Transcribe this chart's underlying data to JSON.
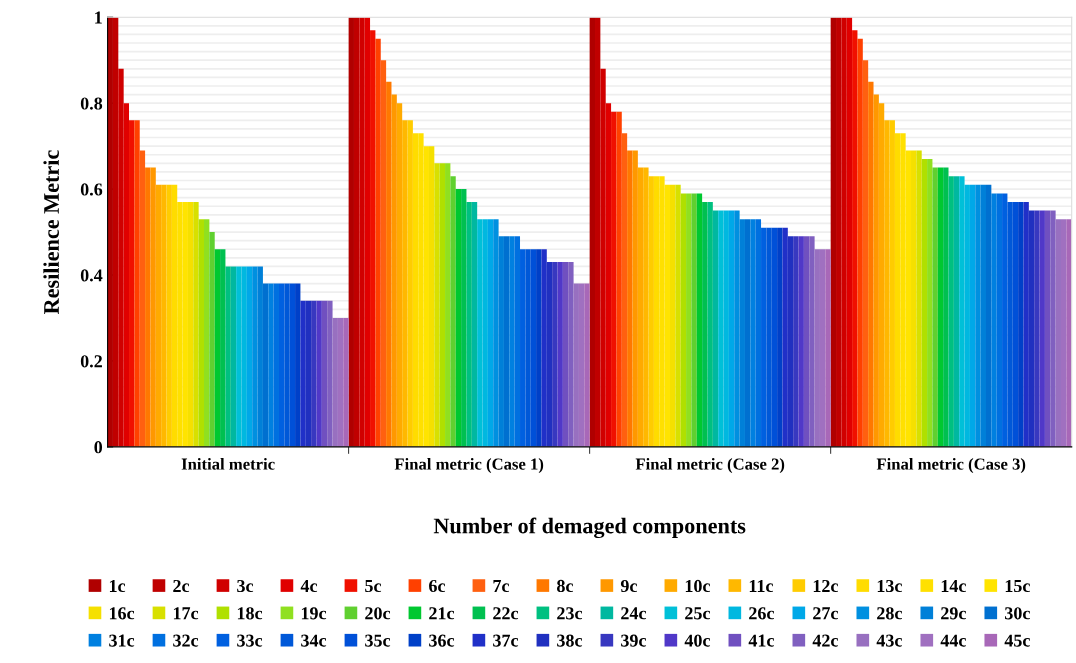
{
  "chart_data": {
    "type": "bar",
    "xlabel": "Number of demaged components",
    "ylabel": "Resilience Metric",
    "categories": [
      "Initial metric",
      "Final metric (Case 1)",
      "Final metric (Case 2)",
      "Final metric (Case 3)"
    ],
    "ylim": [
      0,
      1
    ],
    "yticks": [
      0,
      {
        "value": 0.02,
        "label": null
      },
      {
        "value": 0.04,
        "label": null
      },
      {
        "value": 0.06,
        "label": null
      },
      {
        "value": 0.08,
        "label": null
      },
      {
        "value": 0.1,
        "label": null
      },
      {
        "value": 0.12,
        "label": null
      },
      {
        "value": 0.14,
        "label": null
      },
      {
        "value": 0.16,
        "label": null
      },
      {
        "value": 0.18,
        "label": null
      },
      0.2,
      {
        "value": 0.22,
        "label": null
      },
      {
        "value": 0.24,
        "label": null
      },
      {
        "value": 0.26,
        "label": null
      },
      {
        "value": 0.28,
        "label": null
      },
      {
        "value": 0.3,
        "label": null
      },
      {
        "value": 0.32,
        "label": null
      },
      {
        "value": 0.34,
        "label": null
      },
      {
        "value": 0.36,
        "label": null
      },
      {
        "value": 0.38,
        "label": null
      },
      0.4,
      {
        "value": 0.42,
        "label": null
      },
      {
        "value": 0.44,
        "label": null
      },
      {
        "value": 0.46,
        "label": null
      },
      {
        "value": 0.48,
        "label": null
      },
      {
        "value": 0.5,
        "label": null
      },
      {
        "value": 0.52,
        "label": null
      },
      {
        "value": 0.54,
        "label": null
      },
      {
        "value": 0.56,
        "label": null
      },
      {
        "value": 0.58,
        "label": null
      },
      0.6,
      {
        "value": 0.62,
        "label": null
      },
      {
        "value": 0.64,
        "label": null
      },
      {
        "value": 0.66,
        "label": null
      },
      {
        "value": 0.68,
        "label": null
      },
      {
        "value": 0.7,
        "label": null
      },
      {
        "value": 0.72,
        "label": null
      },
      {
        "value": 0.74,
        "label": null
      },
      {
        "value": 0.76,
        "label": null
      },
      {
        "value": 0.78,
        "label": null
      },
      0.8,
      {
        "value": 0.82,
        "label": null
      },
      {
        "value": 0.84,
        "label": null
      },
      {
        "value": 0.86,
        "label": null
      },
      {
        "value": 0.88,
        "label": null
      },
      {
        "value": 0.9,
        "label": null
      },
      {
        "value": 0.92,
        "label": null
      },
      {
        "value": 0.94,
        "label": null
      },
      {
        "value": 0.96,
        "label": null
      },
      {
        "value": 0.98,
        "label": null
      },
      1
    ],
    "grid": "y",
    "legend": "bottom",
    "series": [
      {
        "name": "1c",
        "color": "#b00000",
        "values": [
          1,
          1,
          1,
          1
        ]
      },
      {
        "name": "2c",
        "color": "#c00000",
        "values": [
          1,
          1,
          1,
          1
        ]
      },
      {
        "name": "3c",
        "color": "#d00000",
        "values": [
          0.88,
          1,
          0.88,
          1
        ]
      },
      {
        "name": "4c",
        "color": "#e00000",
        "values": [
          0.8,
          1,
          0.8,
          1
        ]
      },
      {
        "name": "5c",
        "color": "#f01000",
        "values": [
          0.76,
          0.97,
          0.78,
          0.97
        ]
      },
      {
        "name": "6c",
        "color": "#ff4000",
        "values": [
          0.76,
          0.95,
          0.78,
          0.95
        ]
      },
      {
        "name": "7c",
        "color": "#ff6010",
        "values": [
          0.69,
          0.9,
          0.73,
          0.9
        ]
      },
      {
        "name": "8c",
        "color": "#ff7800",
        "values": [
          0.65,
          0.85,
          0.69,
          0.85
        ]
      },
      {
        "name": "9c",
        "color": "#ff9800",
        "values": [
          0.65,
          0.82,
          0.69,
          0.82
        ]
      },
      {
        "name": "10c",
        "color": "#ffaa00",
        "values": [
          0.61,
          0.8,
          0.65,
          0.8
        ]
      },
      {
        "name": "11c",
        "color": "#ffb800",
        "values": [
          0.61,
          0.76,
          0.65,
          0.76
        ]
      },
      {
        "name": "12c",
        "color": "#ffcc00",
        "values": [
          0.61,
          0.76,
          0.63,
          0.76
        ]
      },
      {
        "name": "13c",
        "color": "#ffdc00",
        "values": [
          0.61,
          0.73,
          0.63,
          0.73
        ]
      },
      {
        "name": "14c",
        "color": "#ffe000",
        "values": [
          0.57,
          0.73,
          0.63,
          0.73
        ]
      },
      {
        "name": "15c",
        "color": "#ffe400",
        "values": [
          0.57,
          0.7,
          0.61,
          0.69
        ]
      },
      {
        "name": "16c",
        "color": "#f5e000",
        "values": [
          0.57,
          0.7,
          0.61,
          0.69
        ]
      },
      {
        "name": "17c",
        "color": "#d8e000",
        "values": [
          0.57,
          0.66,
          0.61,
          0.69
        ]
      },
      {
        "name": "18c",
        "color": "#b0e000",
        "values": [
          0.53,
          0.66,
          0.59,
          0.67
        ]
      },
      {
        "name": "19c",
        "color": "#90e020",
        "values": [
          0.53,
          0.66,
          0.59,
          0.67
        ]
      },
      {
        "name": "20c",
        "color": "#60d030",
        "values": [
          0.5,
          0.63,
          0.59,
          0.65
        ]
      },
      {
        "name": "21c",
        "color": "#00c830",
        "values": [
          0.46,
          0.6,
          0.59,
          0.65
        ]
      },
      {
        "name": "22c",
        "color": "#00c050",
        "values": [
          0.46,
          0.6,
          0.57,
          0.65
        ]
      },
      {
        "name": "23c",
        "color": "#00c080",
        "values": [
          0.42,
          0.57,
          0.57,
          0.63
        ]
      },
      {
        "name": "24c",
        "color": "#00b8a0",
        "values": [
          0.42,
          0.57,
          0.55,
          0.63
        ]
      },
      {
        "name": "25c",
        "color": "#00c0d8",
        "values": [
          0.42,
          0.53,
          0.55,
          0.63
        ]
      },
      {
        "name": "26c",
        "color": "#00b8e0",
        "values": [
          0.42,
          0.53,
          0.55,
          0.61
        ]
      },
      {
        "name": "27c",
        "color": "#00a8e8",
        "values": [
          0.42,
          0.53,
          0.55,
          0.61
        ]
      },
      {
        "name": "28c",
        "color": "#0090e0",
        "values": [
          0.42,
          0.53,
          0.55,
          0.61
        ]
      },
      {
        "name": "29c",
        "color": "#0080d8",
        "values": [
          0.42,
          0.49,
          0.53,
          0.61
        ]
      },
      {
        "name": "30c",
        "color": "#0070d0",
        "values": [
          0.38,
          0.49,
          0.53,
          0.61
        ]
      },
      {
        "name": "31c",
        "color": "#0080e0",
        "values": [
          0.38,
          0.49,
          0.53,
          0.59
        ]
      },
      {
        "name": "32c",
        "color": "#0070e0",
        "values": [
          0.38,
          0.49,
          0.53,
          0.59
        ]
      },
      {
        "name": "33c",
        "color": "#0060e0",
        "values": [
          0.38,
          0.46,
          0.51,
          0.59
        ]
      },
      {
        "name": "34c",
        "color": "#0058d8",
        "values": [
          0.38,
          0.46,
          0.51,
          0.57
        ]
      },
      {
        "name": "35c",
        "color": "#0050d8",
        "values": [
          0.38,
          0.46,
          0.51,
          0.57
        ]
      },
      {
        "name": "36c",
        "color": "#0040c8",
        "values": [
          0.38,
          0.46,
          0.51,
          0.57
        ]
      },
      {
        "name": "37c",
        "color": "#2030c8",
        "values": [
          0.34,
          0.46,
          0.51,
          0.57
        ]
      },
      {
        "name": "38c",
        "color": "#2030c0",
        "values": [
          0.34,
          0.43,
          0.49,
          0.55
        ]
      },
      {
        "name": "39c",
        "color": "#3838c0",
        "values": [
          0.34,
          0.43,
          0.49,
          0.55
        ]
      },
      {
        "name": "40c",
        "color": "#5038c8",
        "values": [
          0.34,
          0.43,
          0.49,
          0.55
        ]
      },
      {
        "name": "41c",
        "color": "#7050c0",
        "values": [
          0.34,
          0.43,
          0.49,
          0.55
        ]
      },
      {
        "name": "42c",
        "color": "#8060c0",
        "values": [
          0.34,
          0.43,
          0.49,
          0.55
        ]
      },
      {
        "name": "43c",
        "color": "#9870c0",
        "values": [
          0.3,
          0.38,
          0.46,
          0.53
        ]
      },
      {
        "name": "44c",
        "color": "#a070c0",
        "values": [
          0.3,
          0.38,
          0.46,
          0.53
        ]
      },
      {
        "name": "45c",
        "color": "#a868b8",
        "values": [
          0.3,
          0.38,
          0.46,
          0.53
        ]
      }
    ]
  }
}
